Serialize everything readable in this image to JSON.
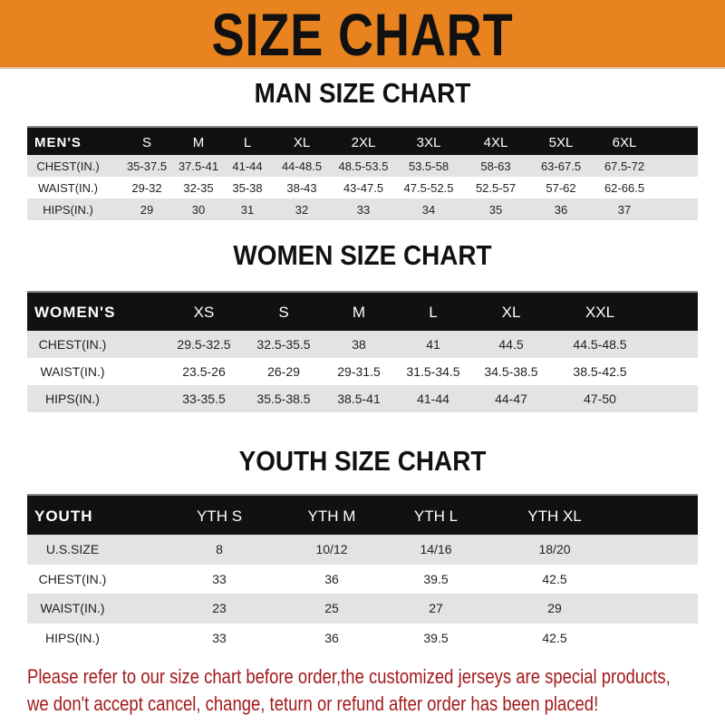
{
  "banner": {
    "title": "SIZE CHART",
    "color": "#E8831F"
  },
  "men": {
    "title": "MAN SIZE CHART",
    "header": [
      "MEN'S",
      "S",
      "M",
      "L",
      "XL",
      "2XL",
      "3XL",
      "4XL",
      "5XL",
      "6XL"
    ],
    "rows": [
      [
        "CHEST(IN.)",
        "35-37.5",
        "37.5-41",
        "41-44",
        "44-48.5",
        "48.5-53.5",
        "53.5-58",
        "58-63",
        "63-67.5",
        "67.5-72"
      ],
      [
        "WAIST(IN.)",
        "29-32",
        "32-35",
        "35-38",
        "38-43",
        "43-47.5",
        "47.5-52.5",
        "52.5-57",
        "57-62",
        "62-66.5"
      ],
      [
        "HIPS(IN.)",
        "29",
        "30",
        "31",
        "32",
        "33",
        "34",
        "35",
        "36",
        "37"
      ]
    ]
  },
  "women": {
    "title": "WOMEN SIZE CHART",
    "header": [
      "WOMEN'S",
      "XS",
      "S",
      "M",
      "L",
      "XL",
      "XXL"
    ],
    "rows": [
      [
        "CHEST(IN.)",
        "29.5-32.5",
        "32.5-35.5",
        "38",
        "41",
        "44.5",
        "44.5-48.5"
      ],
      [
        "WAIST(IN.)",
        "23.5-26",
        "26-29",
        "29-31.5",
        "31.5-34.5",
        "34.5-38.5",
        "38.5-42.5"
      ],
      [
        "HIPS(IN.)",
        "33-35.5",
        "35.5-38.5",
        "38.5-41",
        "41-44",
        "44-47",
        "47-50"
      ]
    ]
  },
  "youth": {
    "title": "YOUTH SIZE CHART",
    "header": [
      "YOUTH",
      "YTH S",
      "YTH M",
      "YTH L",
      "YTH XL"
    ],
    "rows": [
      [
        "U.S.SIZE",
        "8",
        "10/12",
        "14/16",
        "18/20"
      ],
      [
        "CHEST(IN.)",
        "33",
        "36",
        "39.5",
        "42.5"
      ],
      [
        "WAIST(IN.)",
        "23",
        "25",
        "27",
        "29"
      ],
      [
        "HIPS(IN.)",
        "33",
        "36",
        "39.5",
        "42.5"
      ]
    ]
  },
  "notice": {
    "line1": "Please refer to our size chart before order,the customized jerseys are special products,",
    "line2": "we don't accept cancel, change, teturn or refund after order has been placed!",
    "color": "#A3191A"
  }
}
